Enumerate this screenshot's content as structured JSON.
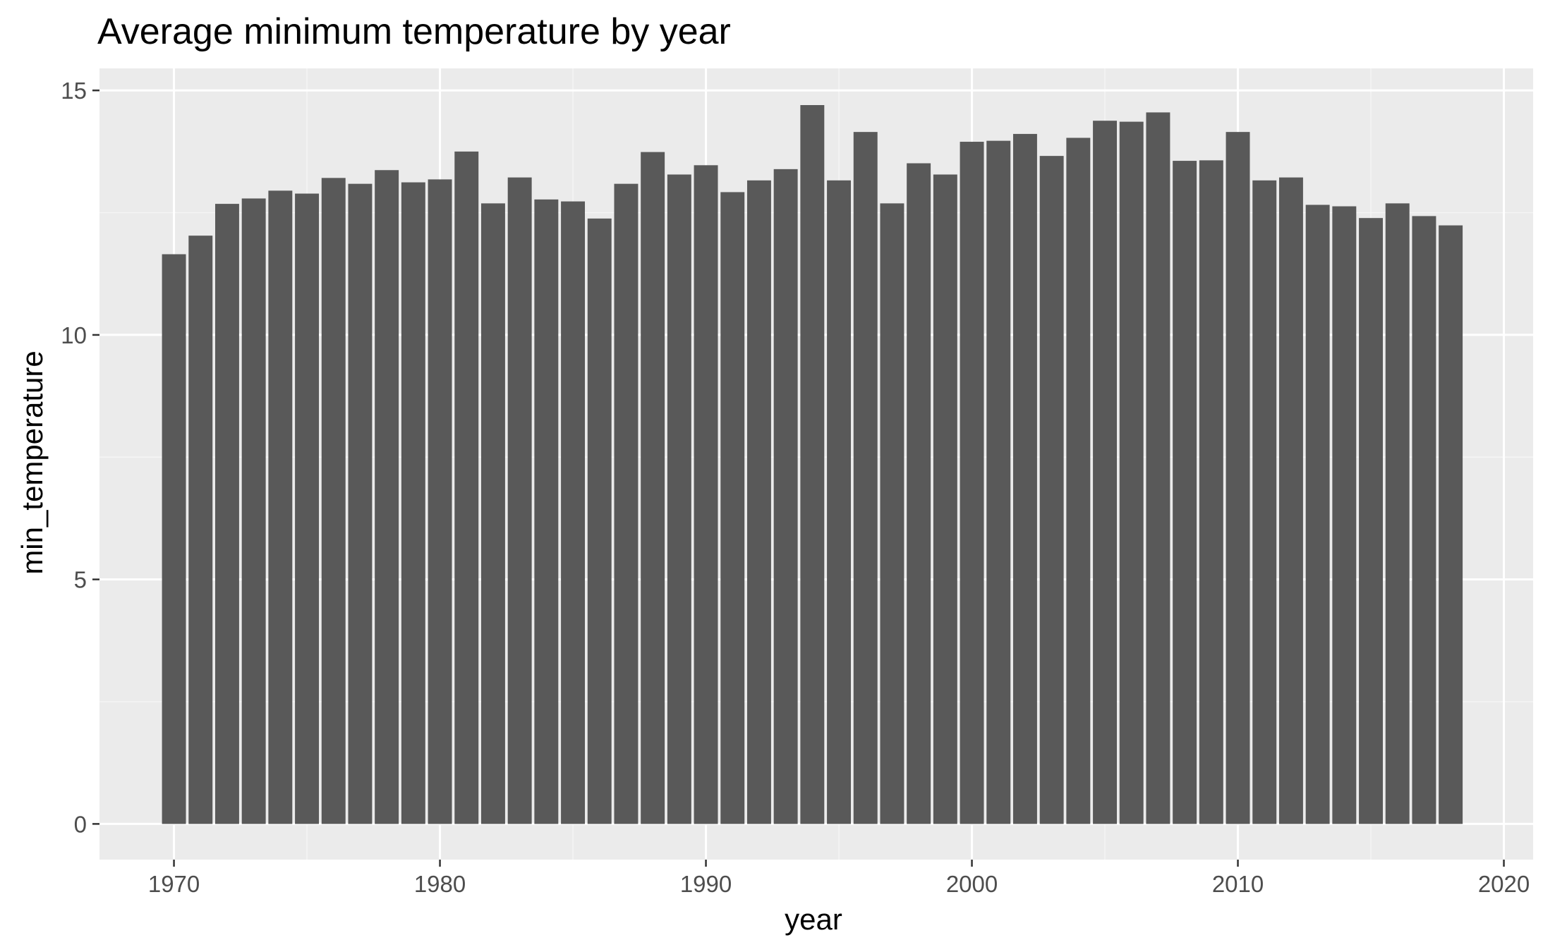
{
  "chart_data": {
    "type": "bar",
    "title": "Average minimum temperature by year",
    "xlabel": "year",
    "ylabel": "min_temperature",
    "x": [
      1970,
      1971,
      1972,
      1973,
      1974,
      1975,
      1976,
      1977,
      1978,
      1979,
      1980,
      1981,
      1982,
      1983,
      1984,
      1985,
      1986,
      1987,
      1988,
      1989,
      1990,
      1991,
      1992,
      1993,
      1994,
      1995,
      1996,
      1997,
      1998,
      1999,
      2000,
      2001,
      2002,
      2003,
      2004,
      2005,
      2006,
      2007,
      2008,
      2009,
      2010,
      2011,
      2012,
      2013,
      2014,
      2015,
      2016,
      2017,
      2018
    ],
    "values": [
      11.65,
      12.03,
      12.68,
      12.79,
      12.95,
      12.89,
      13.21,
      13.09,
      13.37,
      13.12,
      13.18,
      13.75,
      12.69,
      13.22,
      12.77,
      12.73,
      12.38,
      13.09,
      13.74,
      13.28,
      13.47,
      12.92,
      13.16,
      13.39,
      14.7,
      13.16,
      14.15,
      12.69,
      13.51,
      13.28,
      13.95,
      13.97,
      14.11,
      13.66,
      14.03,
      14.38,
      14.36,
      14.55,
      13.56,
      13.57,
      14.15,
      13.16,
      13.22,
      12.66,
      12.63,
      12.39,
      12.69,
      12.43,
      12.24
    ],
    "xlim": [
      1967.2,
      2021.1
    ],
    "ylim": [
      -0.73,
      15.45
    ],
    "x_ticks": [
      1970,
      1980,
      1990,
      2000,
      2010,
      2020
    ],
    "x_tick_labels": [
      "1970",
      "1980",
      "1990",
      "2000",
      "2010",
      "2020"
    ],
    "y_ticks": [
      0,
      5,
      10,
      15
    ],
    "y_tick_labels": [
      "0",
      "5",
      "10",
      "15"
    ],
    "grid": true,
    "legend": "none",
    "colors": {
      "bar": "#595959",
      "panel_background": "#ebebeb",
      "grid_major": "#ffffff",
      "grid_minor": "#f5f5f5",
      "tick_text": "#4d4d4d",
      "tick_mark": "#333333"
    }
  }
}
